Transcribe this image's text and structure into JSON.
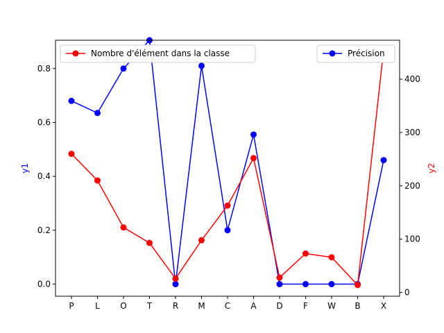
{
  "chart_data": {
    "type": "line",
    "categories": [
      "P",
      "L",
      "O",
      "T",
      "R",
      "M",
      "C",
      "A",
      "D",
      "F",
      "W",
      "B",
      "X"
    ],
    "left_axis": {
      "label": "y1",
      "color": "#0000ff",
      "ylim": [
        -0.045,
        0.905
      ],
      "ticks": [
        "0.0",
        "0.2",
        "0.4",
        "0.6",
        "0.8"
      ],
      "tick_values": [
        0.0,
        0.2,
        0.4,
        0.6,
        0.8
      ]
    },
    "right_axis": {
      "label": "y2",
      "color": "#ff0000",
      "ylim": [
        -7,
        473
      ],
      "ticks": [
        "0",
        "100",
        "200",
        "300",
        "400"
      ],
      "tick_values": [
        0,
        100,
        200,
        300,
        400
      ]
    },
    "series": [
      {
        "name": "Précision",
        "axis": "left",
        "color": "#0000ff",
        "values": [
          0.68,
          0.635,
          0.8,
          0.905,
          0.0,
          0.81,
          0.2,
          0.555,
          0.0,
          0.0,
          0.0,
          0.0,
          0.46
        ],
        "legend_position": "upper-right"
      },
      {
        "name": "Nombre d'élément dans la classe",
        "axis": "right",
        "color": "#ff0000",
        "values": [
          260,
          210,
          122,
          93,
          26,
          98,
          163,
          252,
          28,
          73,
          66,
          14,
          455
        ],
        "legend_position": "upper-left"
      }
    ],
    "grid": false
  }
}
